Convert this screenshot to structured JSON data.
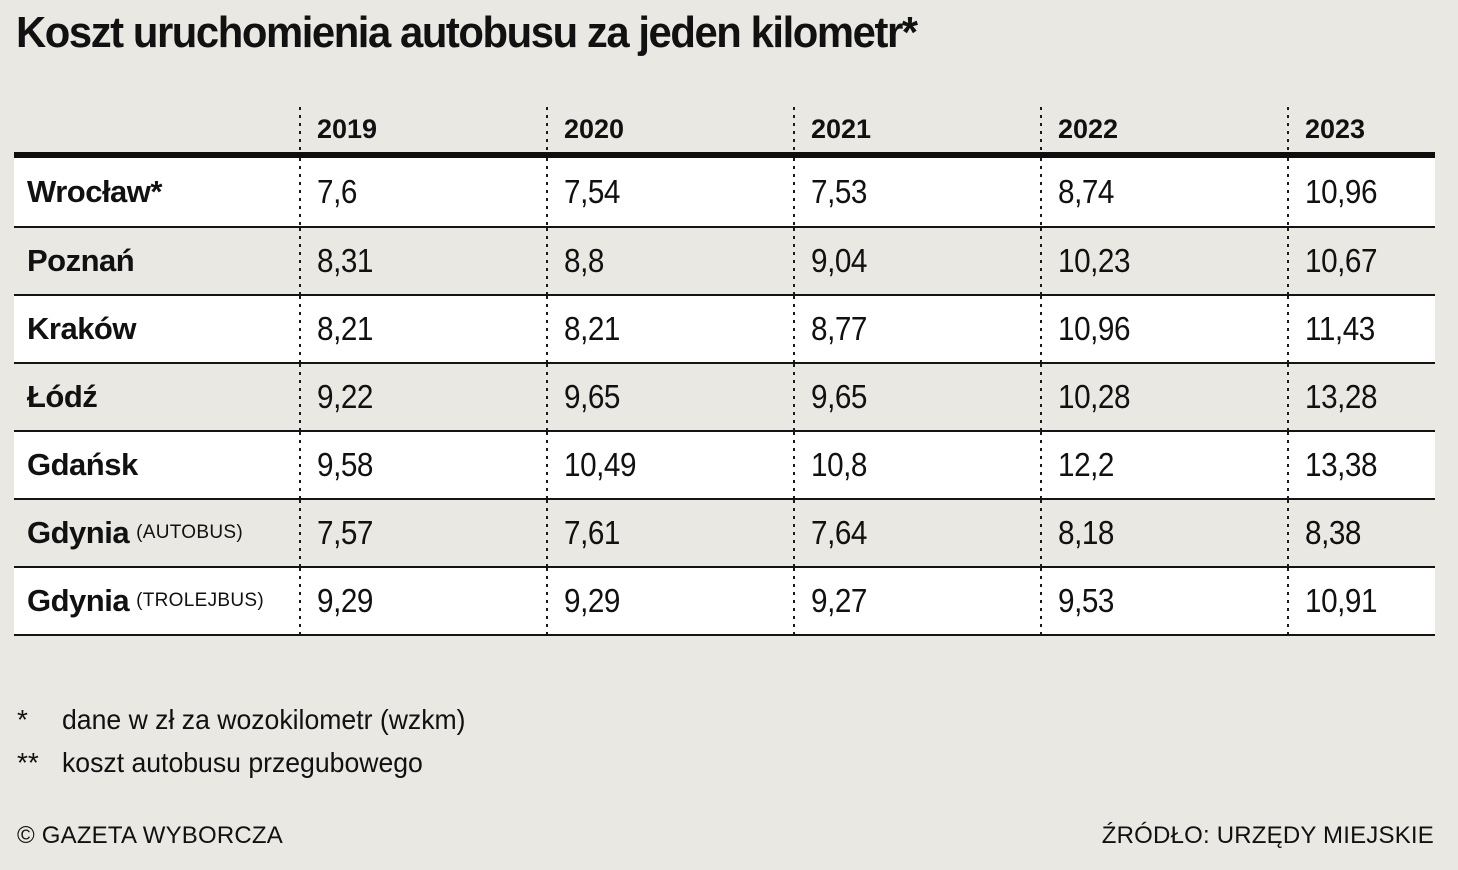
{
  "title": "Koszt uruchomienia autobusu za jeden kilometr*",
  "table": {
    "year_headers": [
      "2019",
      "2020",
      "2021",
      "2022",
      "2023"
    ],
    "rows": [
      {
        "city": "Wrocław*",
        "suffix": "",
        "values": [
          "7,6",
          "7,54",
          "7,53",
          "8,74",
          "10,96"
        ]
      },
      {
        "city": "Poznań",
        "suffix": "",
        "values": [
          "8,31",
          "8,8",
          "9,04",
          "10,23",
          "10,67"
        ]
      },
      {
        "city": "Kraków",
        "suffix": "",
        "values": [
          "8,21",
          "8,21",
          "8,77",
          "10,96",
          "11,43"
        ]
      },
      {
        "city": "Łódź",
        "suffix": "",
        "values": [
          "9,22",
          "9,65",
          "9,65",
          "10,28",
          "13,28"
        ]
      },
      {
        "city": "Gdańsk",
        "suffix": "",
        "values": [
          "9,58",
          "10,49",
          "10,8",
          "12,2",
          "13,38"
        ]
      },
      {
        "city": "Gdynia",
        "suffix": "(AUTOBUS)",
        "values": [
          "7,57",
          "7,61",
          "7,64",
          "8,18",
          "8,38"
        ]
      },
      {
        "city": "Gdynia",
        "suffix": "(TROLEJBUS)",
        "values": [
          "9,29",
          "9,29",
          "9,27",
          "9,53",
          "10,91"
        ]
      }
    ]
  },
  "footnotes": [
    {
      "marker": "*",
      "text": "dane w zł za wozokilometr (wzkm)"
    },
    {
      "marker": "**",
      "text": "koszt autobusu przegubowego"
    }
  ],
  "footer": {
    "left": "© GAZETA WYBORCZA",
    "right": "ŹRÓDŁO: URZĘDY MIEJSKIE"
  },
  "colors": {
    "background": "#e9e8e2",
    "row_white": "#ffffff",
    "text": "#111111",
    "rule": "#0e0e0e"
  },
  "chart_data": {
    "type": "table",
    "title": "Koszt uruchomienia autobusu za jeden kilometr*",
    "categories": [
      "2019",
      "2020",
      "2021",
      "2022",
      "2023"
    ],
    "series": [
      {
        "name": "Wrocław*",
        "values": [
          7.6,
          7.54,
          7.53,
          8.74,
          10.96
        ]
      },
      {
        "name": "Poznań",
        "values": [
          8.31,
          8.8,
          9.04,
          10.23,
          10.67
        ]
      },
      {
        "name": "Kraków",
        "values": [
          8.21,
          8.21,
          8.77,
          10.96,
          11.43
        ]
      },
      {
        "name": "Łódź",
        "values": [
          9.22,
          9.65,
          9.65,
          10.28,
          13.28
        ]
      },
      {
        "name": "Gdańsk",
        "values": [
          9.58,
          10.49,
          10.8,
          12.2,
          13.38
        ]
      },
      {
        "name": "Gdynia (AUTOBUS)",
        "values": [
          7.57,
          7.61,
          7.64,
          8.18,
          8.38
        ]
      },
      {
        "name": "Gdynia (TROLEJBUS)",
        "values": [
          9.29,
          9.29,
          9.27,
          9.53,
          10.91
        ]
      }
    ],
    "unit": "zł za wozokilometr (wzkm)",
    "source": "ŹRÓDŁO: URZĘDY MIEJSKIE"
  }
}
